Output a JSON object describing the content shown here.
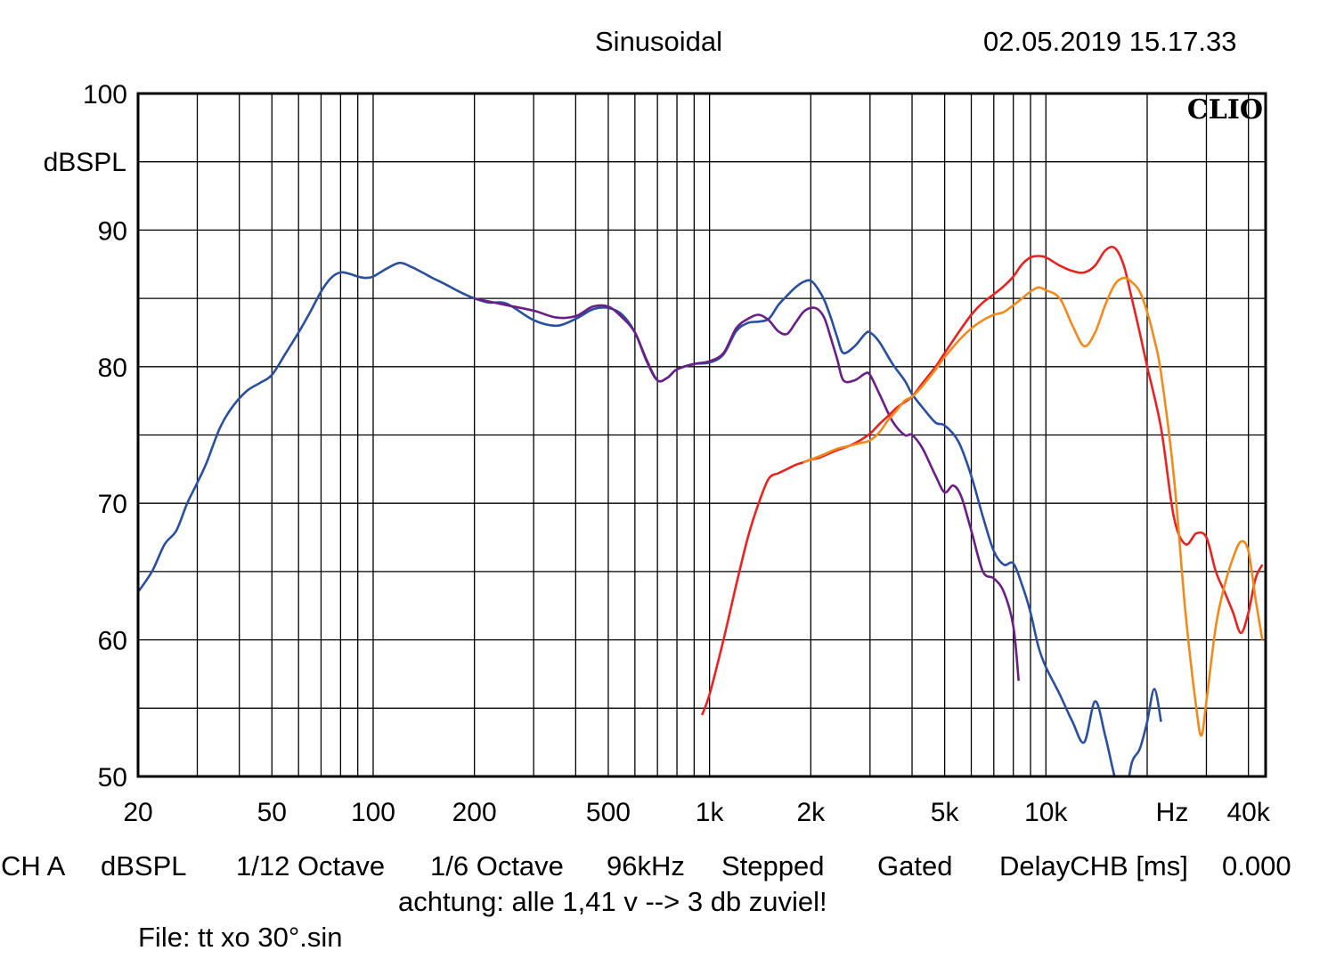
{
  "header": {
    "mode": "Sinusoidal",
    "datetime": "02.05.2019 15.17.33"
  },
  "footer": {
    "channel": "CH A",
    "unit": "dBSPL",
    "smoothing": "1/12 Octave",
    "resolution": "1/6 Octave",
    "sample_rate": "96kHz",
    "method": "Stepped",
    "window": "Gated",
    "delay_label": "DelayCHB [ms]",
    "delay_value": "0.000",
    "note": "achtung: alle 1,41 v --> 3 db zuviel!",
    "file": "File: tt xo 30°.sin"
  },
  "chart_data": {
    "type": "line",
    "brand": "CLIO",
    "xscale": "log",
    "xlim": [
      20,
      45000
    ],
    "ylim": [
      50,
      100
    ],
    "ylabel": "dBSPL",
    "xunit": "Hz",
    "grid": true,
    "y_ticks": [
      {
        "value": 100,
        "label": "100"
      },
      {
        "value": 90,
        "label": "90"
      },
      {
        "value": 80,
        "label": "80"
      },
      {
        "value": 70,
        "label": "70"
      },
      {
        "value": 60,
        "label": "60"
      },
      {
        "value": 50,
        "label": "50"
      }
    ],
    "x_ticks": [
      {
        "value": 20,
        "label": "20"
      },
      {
        "value": 50,
        "label": "50"
      },
      {
        "value": 100,
        "label": "100"
      },
      {
        "value": 200,
        "label": "200"
      },
      {
        "value": 500,
        "label": "500"
      },
      {
        "value": 1000,
        "label": "1k"
      },
      {
        "value": 2000,
        "label": "2k"
      },
      {
        "value": 5000,
        "label": "5k"
      },
      {
        "value": 10000,
        "label": "10k"
      },
      {
        "value": 40000,
        "label": "40k"
      }
    ],
    "series": [
      {
        "color": "#2a4f9e",
        "x": [
          20,
          22,
          24,
          26,
          28,
          30,
          32,
          35,
          38,
          42,
          46,
          50,
          55,
          60,
          65,
          70,
          75,
          80,
          85,
          90,
          95,
          100,
          110,
          120,
          130,
          140,
          150,
          165,
          180,
          200,
          220,
          250,
          300,
          350,
          400,
          450,
          500,
          550,
          600,
          650,
          700,
          750,
          800,
          900,
          1000,
          1100,
          1200,
          1300,
          1400,
          1500,
          1600,
          1700,
          1800,
          1900,
          2000,
          2100,
          2200,
          2300,
          2400,
          2500,
          2700,
          2900,
          3000,
          3200,
          3500,
          3800,
          4000,
          4300,
          4700,
          5000,
          5500,
          6000,
          6500,
          7000,
          7500,
          8000,
          8500,
          9000,
          9500,
          10000,
          11000,
          12000,
          13000,
          14000,
          15000,
          16000,
          17000,
          18000,
          19000,
          20000,
          21000,
          22000
        ],
        "y": [
          63.5,
          65,
          67,
          68,
          70,
          71.5,
          73,
          75.5,
          77,
          78.2,
          78.8,
          79.4,
          81,
          82.5,
          84,
          85.5,
          86.5,
          86.9,
          86.8,
          86.6,
          86.5,
          86.6,
          87.2,
          87.6,
          87.3,
          86.9,
          86.5,
          86,
          85.5,
          85,
          84.7,
          84.6,
          83.4,
          83.0,
          83.5,
          84.2,
          84.3,
          83.8,
          82.5,
          80.4,
          79.0,
          79.2,
          79.8,
          80.2,
          80.3,
          80.9,
          82.6,
          83.2,
          83.3,
          83.5,
          84.5,
          85.2,
          85.8,
          86.2,
          86.3,
          85.7,
          84.8,
          83.5,
          82.1,
          81.0,
          81.5,
          82.4,
          82.5,
          81.8,
          80.2,
          79.0,
          78.0,
          77.0,
          75.9,
          75.7,
          74.5,
          72.0,
          69.0,
          66.5,
          65.5,
          65.6,
          64.0,
          62.0,
          59.5,
          58.0,
          56.0,
          54.0,
          52.5,
          55.5,
          53.0,
          50.0,
          48.0,
          51.0,
          52.0,
          54.0,
          56.4,
          54.0
        ]
      },
      {
        "color": "#6a1f84",
        "x": [
          200,
          250,
          300,
          350,
          400,
          450,
          500,
          550,
          600,
          650,
          700,
          750,
          800,
          900,
          1000,
          1100,
          1200,
          1300,
          1400,
          1500,
          1600,
          1700,
          1800,
          1900,
          2000,
          2100,
          2200,
          2300,
          2400,
          2500,
          2700,
          2900,
          3000,
          3200,
          3500,
          3800,
          4000,
          4300,
          4700,
          5000,
          5300,
          5600,
          6000,
          6500,
          7000,
          7500,
          8000,
          8300
        ],
        "y": [
          85,
          84.5,
          84.1,
          83.6,
          83.7,
          84.4,
          84.4,
          83.6,
          82.5,
          80.5,
          79.0,
          79.2,
          79.8,
          80.2,
          80.4,
          81.0,
          82.8,
          83.5,
          83.8,
          83.4,
          82.6,
          82.4,
          83.2,
          84.0,
          84.3,
          84.2,
          83.5,
          82.0,
          80.5,
          79.0,
          79.0,
          79.5,
          79.4,
          78.0,
          76.0,
          75.0,
          75.0,
          74.0,
          72.0,
          70.8,
          71.3,
          70.5,
          68.0,
          65.0,
          64.5,
          63.5,
          61.0,
          57.0
        ]
      },
      {
        "color": "#e52421",
        "x": [
          950,
          1000,
          1100,
          1200,
          1300,
          1400,
          1500,
          1600,
          1700,
          1800,
          1900,
          2000,
          2100,
          2200,
          2400,
          2600,
          2800,
          3000,
          3200,
          3400,
          3600,
          3800,
          4000,
          4300,
          4700,
          5000,
          5500,
          6000,
          6500,
          7000,
          7500,
          8000,
          8500,
          9000,
          9500,
          10000,
          11000,
          12000,
          13000,
          14000,
          15000,
          16000,
          17000,
          18000,
          19000,
          20000,
          22000,
          24000,
          26000,
          28000,
          30000,
          32000,
          34000,
          36000,
          38000,
          40000,
          42000,
          44000
        ],
        "y": [
          54.5,
          56,
          60,
          64,
          67.5,
          70,
          71.8,
          72.2,
          72.5,
          72.8,
          73.0,
          73.2,
          73.3,
          73.5,
          73.9,
          74.2,
          74.6,
          75.1,
          75.8,
          76.4,
          77.0,
          77.4,
          77.8,
          78.8,
          80.0,
          81.0,
          82.5,
          83.8,
          84.7,
          85.3,
          85.9,
          86.6,
          87.5,
          88.0,
          88.1,
          88.0,
          87.4,
          87.0,
          86.9,
          87.4,
          88.5,
          88.7,
          87.5,
          85.0,
          82.5,
          80.0,
          75.5,
          69.0,
          67.0,
          67.8,
          67.5,
          65.0,
          63.5,
          62.0,
          60.5,
          62.0,
          64.5,
          65.5
        ]
      },
      {
        "color": "#f08a1c",
        "x": [
          1900,
          2000,
          2100,
          2200,
          2400,
          2600,
          2800,
          3000,
          3200,
          3400,
          3600,
          3800,
          4000,
          4300,
          4700,
          5000,
          5500,
          6000,
          6500,
          7000,
          7500,
          8000,
          8500,
          9000,
          9500,
          10000,
          11000,
          12000,
          13000,
          14000,
          15000,
          16000,
          17000,
          18000,
          19000,
          20000,
          21000,
          22000,
          24000,
          26000,
          28000,
          29000,
          30000,
          32000,
          34000,
          36000,
          38000,
          40000,
          42000,
          44000
        ],
        "y": [
          73.0,
          73.2,
          73.4,
          73.6,
          74.0,
          74.2,
          74.4,
          74.6,
          75.2,
          76.1,
          76.8,
          77.5,
          77.8,
          78.6,
          79.8,
          80.7,
          81.9,
          82.8,
          83.4,
          83.8,
          84.0,
          84.5,
          85.0,
          85.5,
          85.8,
          85.6,
          85.0,
          83.0,
          81.5,
          82.5,
          84.5,
          86.0,
          86.5,
          86.2,
          85.5,
          84.0,
          82.0,
          79.5,
          72.0,
          62.0,
          55.0,
          53.0,
          55.5,
          61.0,
          64.0,
          66.0,
          67.2,
          66.5,
          63.0,
          60.0
        ]
      }
    ]
  }
}
